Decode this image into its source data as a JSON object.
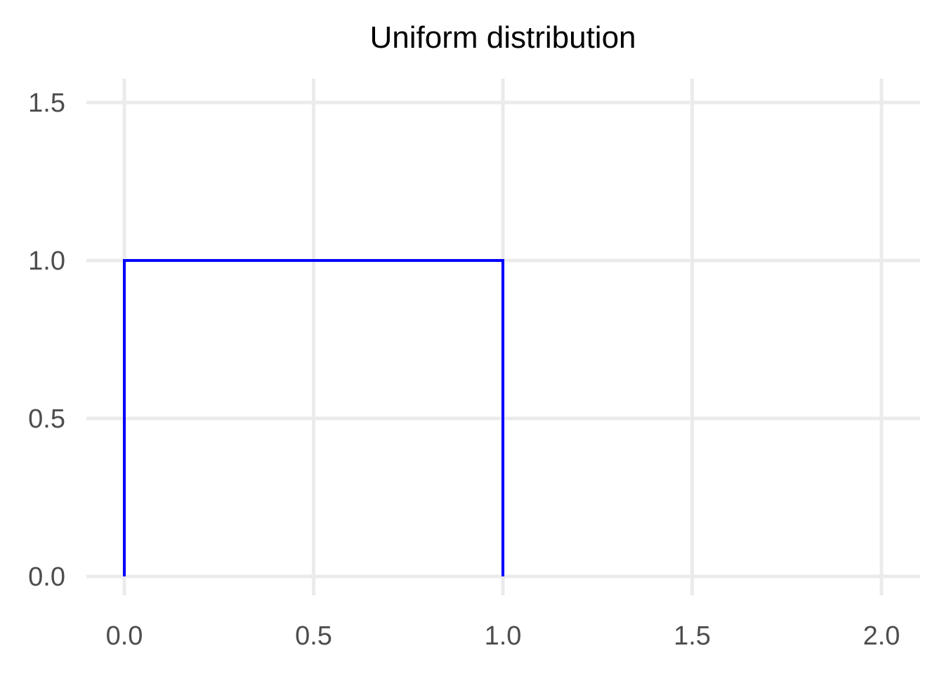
{
  "chart_data": {
    "type": "line",
    "title": "Uniform distribution",
    "xlabel": "",
    "ylabel": "",
    "xlim": [
      -0.1,
      2.1
    ],
    "ylim": [
      0,
      1.5
    ],
    "x_ticks": [
      0.0,
      0.5,
      1.0,
      1.5,
      2.0
    ],
    "x_tick_labels": [
      "0.0",
      "0.5",
      "1.0",
      "1.5",
      "2.0"
    ],
    "y_ticks": [
      0.0,
      0.5,
      1.0,
      1.5
    ],
    "y_tick_labels": [
      "0.0",
      "0.5",
      "1.0",
      "1.5"
    ],
    "grid": true,
    "legend": "none",
    "series": [
      {
        "color": "#0000ff",
        "x": [
          0.0,
          0.0,
          1.0,
          1.0
        ],
        "y": [
          0.0,
          1.0,
          1.0,
          0.0
        ]
      }
    ]
  }
}
